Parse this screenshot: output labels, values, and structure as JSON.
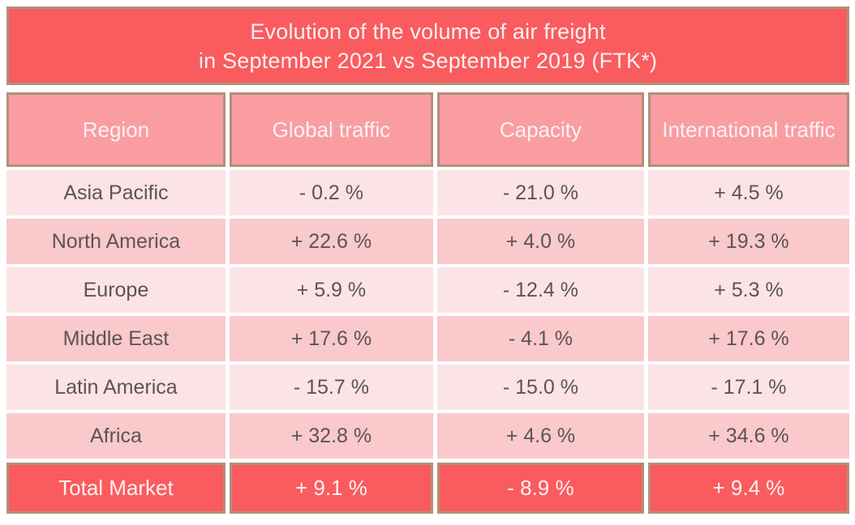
{
  "title": {
    "line1": "Evolution of the volume of air freight",
    "line2": "in September 2021 vs September 2019 (FTK*)"
  },
  "table": {
    "columns": [
      "Region",
      "Global traffic",
      "Capacity",
      "International traffic"
    ],
    "rows": [
      {
        "cells": [
          "Asia Pacific",
          "- 0.2 %",
          "- 21.0 %",
          "+ 4.5 %"
        ]
      },
      {
        "cells": [
          "North America",
          "+ 22.6 %",
          "+ 4.0 %",
          "+ 19.3 %"
        ]
      },
      {
        "cells": [
          "Europe",
          "+ 5.9 %",
          "- 12.4 %",
          "+ 5.3 %"
        ]
      },
      {
        "cells": [
          "Middle East",
          "+ 17.6 %",
          "- 4.1 %",
          "+ 17.6 %"
        ]
      },
      {
        "cells": [
          "Latin America",
          "- 15.7 %",
          "- 15.0 %",
          "- 17.1 %"
        ]
      },
      {
        "cells": [
          "Africa",
          "+ 32.8 %",
          "+ 4.6 %",
          "+ 34.6 %"
        ]
      }
    ],
    "total": {
      "cells": [
        "Total Market",
        "+ 9.1 %",
        "- 8.9 %",
        "+ 9.4 %"
      ]
    }
  },
  "colors": {
    "accent_red": "#FA5B5E",
    "header_salmon": "#F99DA1",
    "row_light": "#FCE4E6",
    "row_medium": "#F9C9CB",
    "border_tan": "#B09077",
    "text_dark": "#5C5356",
    "text_light": "#FDF1F2"
  },
  "chart_data": {
    "type": "table",
    "title": "Evolution of the volume of air freight in September 2021 vs September 2019 (FTK*)",
    "unit": "%",
    "categories": [
      "Asia Pacific",
      "North America",
      "Europe",
      "Middle East",
      "Latin America",
      "Africa",
      "Total Market"
    ],
    "series": [
      {
        "name": "Global traffic",
        "values": [
          -0.2,
          22.6,
          5.9,
          17.6,
          -15.7,
          32.8,
          9.1
        ]
      },
      {
        "name": "Capacity",
        "values": [
          -21.0,
          4.0,
          -12.4,
          -4.1,
          -15.0,
          4.6,
          -8.9
        ]
      },
      {
        "name": "International traffic",
        "values": [
          4.5,
          19.3,
          5.3,
          17.6,
          -17.1,
          34.6,
          9.4
        ]
      }
    ],
    "layout_hints": {
      "header_fill": "#F99DA1",
      "total_row_fill": "#FA5B5E",
      "alternating_row_fills": [
        "#FCE4E6",
        "#F9C9CB"
      ],
      "grid": "white gaps between cells"
    }
  }
}
